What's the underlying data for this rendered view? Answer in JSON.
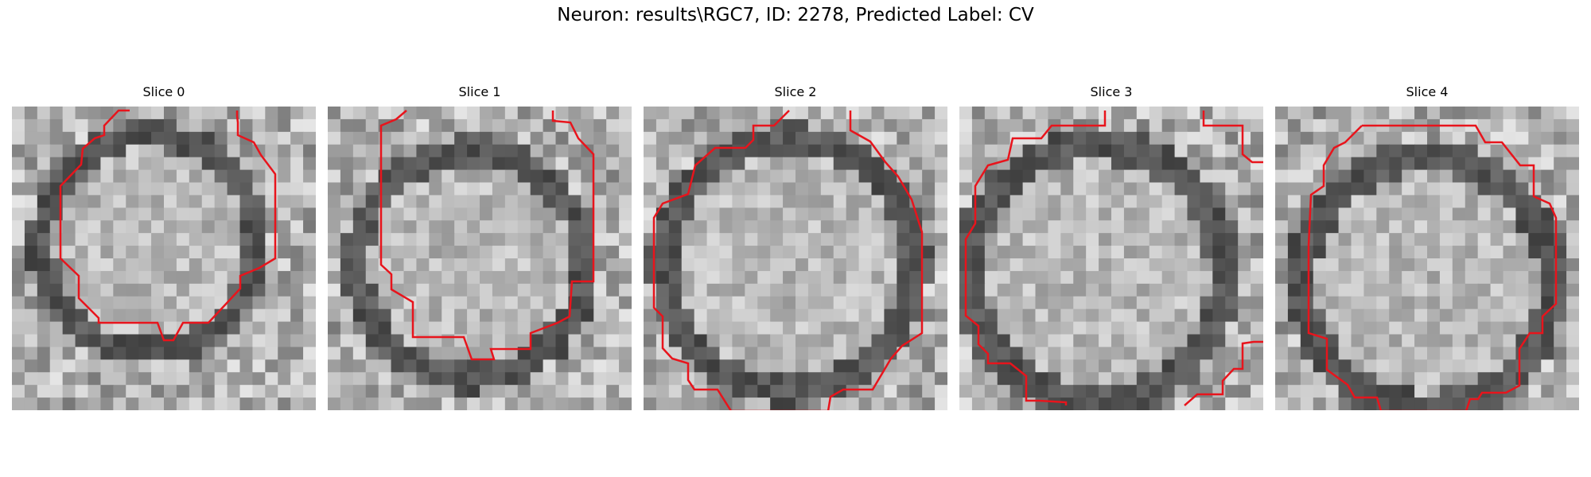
{
  "title": "Neuron: results\\RGC7, ID: 2278, Predicted Label: CV",
  "panels": [
    {
      "title": "Slice 0"
    },
    {
      "title": "Slice 1"
    },
    {
      "title": "Slice 2"
    },
    {
      "title": "Slice 3"
    },
    {
      "title": "Slice 4"
    }
  ],
  "colors": {
    "contour": "#e8141c"
  },
  "notes": {
    "image_content": "grayscale microscopy slices with red segmentation contour"
  }
}
